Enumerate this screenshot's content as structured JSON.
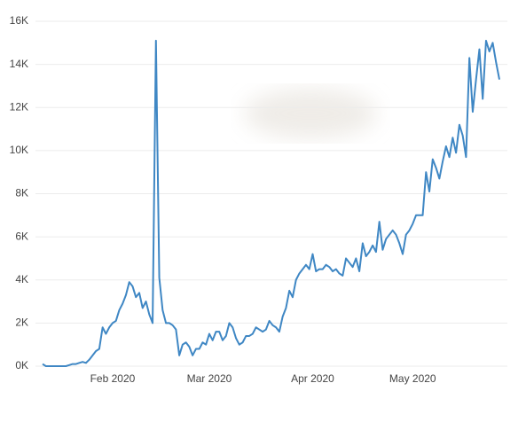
{
  "chart_data": {
    "type": "line",
    "categories": [
      null,
      null,
      null,
      null,
      null,
      null,
      null,
      null,
      null,
      null,
      null,
      null,
      null,
      null,
      null,
      null,
      null,
      null,
      null,
      null,
      null,
      "Feb 2020",
      null,
      null,
      null,
      null,
      null,
      null,
      null,
      null,
      null,
      null,
      null,
      null,
      null,
      null,
      null,
      null,
      null,
      null,
      null,
      null,
      null,
      null,
      null,
      null,
      null,
      null,
      null,
      null,
      "Mar 2020",
      null,
      null,
      null,
      null,
      null,
      null,
      null,
      null,
      null,
      null,
      null,
      null,
      null,
      null,
      null,
      null,
      null,
      null,
      null,
      null,
      null,
      null,
      null,
      null,
      null,
      null,
      null,
      null,
      null,
      null,
      "Apr 2020",
      null,
      null,
      null,
      null,
      null,
      null,
      null,
      null,
      null,
      null,
      null,
      null,
      null,
      null,
      null,
      null,
      null,
      null,
      null,
      null,
      null,
      null,
      null,
      null,
      null,
      null,
      null,
      null,
      null,
      "May 2020",
      null,
      null,
      null,
      null,
      null,
      null,
      null,
      null,
      null,
      null,
      null,
      null,
      null,
      null,
      null,
      null,
      null,
      null,
      null,
      null,
      null,
      null,
      null,
      null,
      null,
      null
    ],
    "series": [
      {
        "color": "#3f87c4",
        "values": [
          100,
          0,
          0,
          0,
          0,
          0,
          0,
          0,
          50,
          100,
          100,
          150,
          200,
          150,
          300,
          500,
          700,
          800,
          1800,
          1500,
          1800,
          2000,
          2100,
          2600,
          2900,
          3300,
          3900,
          3700,
          3200,
          3400,
          2700,
          3000,
          2400,
          2000,
          15100,
          4100,
          2600,
          2000,
          2000,
          1900,
          1700,
          500,
          1000,
          1100,
          900,
          500,
          800,
          800,
          1100,
          1000,
          1500,
          1200,
          1600,
          1600,
          1200,
          1400,
          2000,
          1800,
          1300,
          1000,
          1100,
          1400,
          1400,
          1500,
          1800,
          1700,
          1600,
          1700,
          2100,
          1900,
          1800,
          1600,
          2300,
          2700,
          3500,
          3200,
          4000,
          4300,
          4500,
          4700,
          4500,
          5200,
          4400,
          4500,
          4500,
          4700,
          4600,
          4400,
          4500,
          4300,
          4200,
          5000,
          4800,
          4600,
          5000,
          4400,
          5700,
          5100,
          5300,
          5600,
          5300,
          6700,
          5400,
          5900,
          6100,
          6300,
          6100,
          5700,
          5200,
          6100,
          6300,
          6600,
          7000,
          7000,
          7000,
          9000,
          8100,
          9600,
          9200,
          8700,
          9500,
          10200,
          9700,
          10600,
          9900,
          11200,
          10700,
          9700,
          14300,
          11800,
          13300,
          14700,
          12400,
          15100,
          14600,
          15000,
          14100,
          13300
        ]
      }
    ],
    "ylim": [
      0,
      16000
    ],
    "yticks": [
      {
        "value": 0,
        "label": "0K"
      },
      {
        "value": 2000,
        "label": "2K"
      },
      {
        "value": 4000,
        "label": "4K"
      },
      {
        "value": 6000,
        "label": "6K"
      },
      {
        "value": 8000,
        "label": "8K"
      },
      {
        "value": 10000,
        "label": "10K"
      },
      {
        "value": 12000,
        "label": "12K"
      },
      {
        "value": 14000,
        "label": "14K"
      },
      {
        "value": 16000,
        "label": "16K"
      }
    ],
    "grid": true
  }
}
